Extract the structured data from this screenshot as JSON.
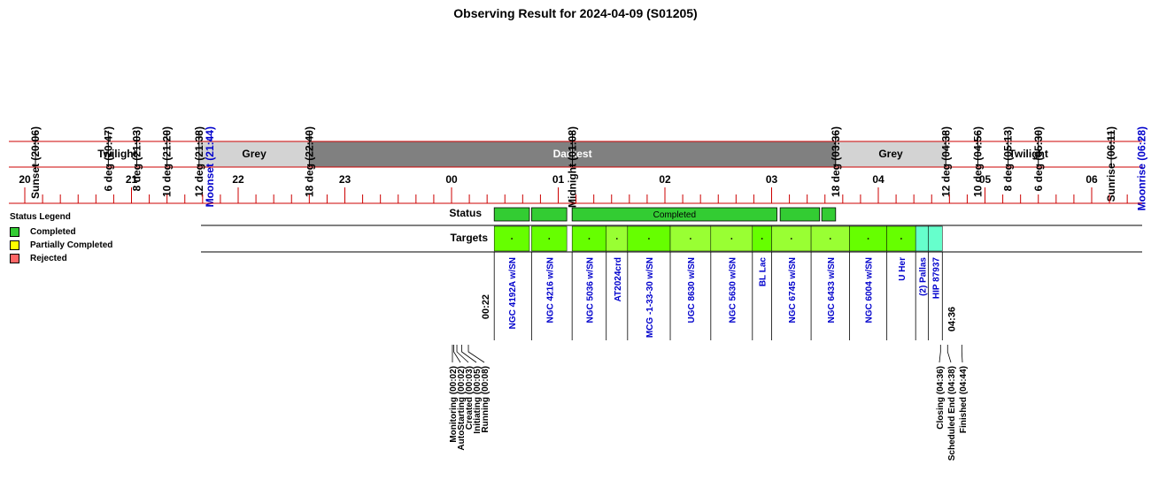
{
  "title": "Observing Result for 2024-04-09 (S01205)",
  "colors": {
    "red": "#cc0000",
    "twilight": "#ffffff",
    "grey": "#d3d3d3",
    "darkest": "#808080",
    "completed": "#33cc33",
    "target_light": "#99ff33",
    "target_green": "#66ff00",
    "target_cyan": "#66ffcc",
    "partial": "#ffff00",
    "rejected": "#ff6666",
    "moon": "#0000cc"
  },
  "legend": {
    "title": "Status Legend",
    "items": [
      {
        "label": "Completed",
        "color": "#33cc33"
      },
      {
        "label": "Partially Completed",
        "color": "#ffff00"
      },
      {
        "label": "Rejected",
        "color": "#ff6666"
      }
    ]
  },
  "chart_data": {
    "type": "timeline",
    "x_unit": "hours (UT)",
    "x_range": [
      19.75,
      30.5
    ],
    "hour_tick_labels": [
      "20",
      "21",
      "22",
      "23",
      "00",
      "01",
      "02",
      "03",
      "04",
      "05",
      "06"
    ],
    "events": [
      {
        "label": "Sunset (20:06)",
        "t": 20.1,
        "kind": "sun"
      },
      {
        "label": "6 deg (20:47)",
        "t": 20.783,
        "kind": "sun"
      },
      {
        "label": "8 deg (21:03)",
        "t": 21.05,
        "kind": "sun"
      },
      {
        "label": "10 deg (21:20)",
        "t": 21.333,
        "kind": "sun"
      },
      {
        "label": "12 deg (21:38)",
        "t": 21.633,
        "kind": "sun"
      },
      {
        "label": "Moonset (21:44)",
        "t": 21.733,
        "kind": "moon"
      },
      {
        "label": "18 deg (22:40)",
        "t": 22.667,
        "kind": "sun"
      },
      {
        "label": "Midnight (01:08)",
        "t": 25.133,
        "kind": "sun"
      },
      {
        "label": "18 deg (03:36)",
        "t": 27.6,
        "kind": "sun"
      },
      {
        "label": "12 deg (04:38)",
        "t": 28.633,
        "kind": "sun"
      },
      {
        "label": "10 deg (04:56)",
        "t": 28.933,
        "kind": "sun"
      },
      {
        "label": "8 deg (05:13)",
        "t": 29.217,
        "kind": "sun"
      },
      {
        "label": "6 deg (05:30)",
        "t": 29.5,
        "kind": "sun"
      },
      {
        "label": "Sunrise (06:11)",
        "t": 30.183,
        "kind": "sun"
      },
      {
        "label": "Moonrise (06:28)",
        "t": 30.467,
        "kind": "moon"
      }
    ],
    "phases": [
      {
        "label": "Twilight",
        "start": 20.1,
        "end": 21.633,
        "color": "twilight"
      },
      {
        "label": "Grey",
        "start": 21.633,
        "end": 22.667,
        "color": "grey"
      },
      {
        "label": "Darkest",
        "start": 22.667,
        "end": 27.6,
        "color": "darkest"
      },
      {
        "label": "Grey",
        "start": 27.6,
        "end": 28.633,
        "color": "grey"
      },
      {
        "label": "Twilight",
        "start": 28.633,
        "end": 30.183,
        "color": "twilight"
      }
    ],
    "row_labels": {
      "status": "Status",
      "targets": "Targets"
    },
    "status_bars": [
      {
        "start": 24.4,
        "end": 24.73,
        "label": ""
      },
      {
        "start": 24.75,
        "end": 25.08,
        "label": ""
      },
      {
        "start": 25.13,
        "end": 27.05,
        "label": "Completed"
      },
      {
        "start": 27.08,
        "end": 27.45,
        "label": ""
      },
      {
        "start": 27.47,
        "end": 27.6,
        "label": ""
      }
    ],
    "targets": [
      {
        "name": "NGC 4192A w/SN",
        "start": 24.4,
        "end": 24.73,
        "color": "target_green"
      },
      {
        "name": "NGC 4216 w/SN",
        "start": 24.75,
        "end": 25.08,
        "color": "target_green"
      },
      {
        "name": "NGC 5036 w/SN",
        "start": 25.13,
        "end": 25.45,
        "color": "target_green"
      },
      {
        "name": "AT2024crd",
        "start": 25.45,
        "end": 25.65,
        "color": "target_light"
      },
      {
        "name": "MCG -1-33-30 w/SN",
        "start": 25.65,
        "end": 26.05,
        "color": "target_green"
      },
      {
        "name": "UGC 8630 w/SN",
        "start": 26.05,
        "end": 26.43,
        "color": "target_light"
      },
      {
        "name": "NGC 5630 w/SN",
        "start": 26.43,
        "end": 26.82,
        "color": "target_light"
      },
      {
        "name": "BL Lac",
        "start": 26.82,
        "end": 27.0,
        "color": "target_green"
      },
      {
        "name": "NGC 6745 w/SN",
        "start": 27.0,
        "end": 27.37,
        "color": "target_light"
      },
      {
        "name": "NGC 6433 w/SN",
        "start": 27.37,
        "end": 27.73,
        "color": "target_light"
      },
      {
        "name": "NGC 6004 w/SN",
        "start": 27.73,
        "end": 28.08,
        "color": "target_green"
      },
      {
        "name": "U Her",
        "start": 28.08,
        "end": 28.35,
        "color": "target_green"
      },
      {
        "name": "(2) Pallas",
        "start": 28.35,
        "end": 28.47,
        "color": "target_cyan"
      },
      {
        "name": "HIP 87937",
        "start": 28.47,
        "end": 28.6,
        "color": "target_cyan"
      }
    ],
    "start_time": {
      "label": "00:22",
      "t": 24.367
    },
    "end_time": {
      "label": "04:36",
      "t": 28.6
    },
    "start_events": [
      {
        "label": "Monitoring (00:02)",
        "t": 24.033
      },
      {
        "label": "AutoStarting (00:02)",
        "t": 24.033
      },
      {
        "label": "Created (00:03)",
        "t": 24.05
      },
      {
        "label": "Initiating (00:05)",
        "t": 24.083
      },
      {
        "label": "Running (00:08)",
        "t": 24.133
      }
    ],
    "end_events": [
      {
        "label": "Closing (04:36)",
        "t": 28.6
      },
      {
        "label": "Scheduled End (04:38)",
        "t": 28.633
      },
      {
        "label": "Finished (04:44)",
        "t": 28.733
      }
    ]
  }
}
